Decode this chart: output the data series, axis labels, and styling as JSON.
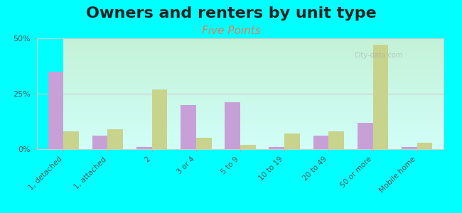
{
  "title": "Owners and renters by unit type",
  "subtitle": "Five Points",
  "categories": [
    "1, detached",
    "1, attached",
    "2",
    "3 or 4",
    "5 to 9",
    "10 to 19",
    "20 to 49",
    "50 or more",
    "Mobile home"
  ],
  "owner_values": [
    35,
    6,
    1,
    20,
    21,
    1,
    6,
    12,
    1
  ],
  "renter_values": [
    8,
    9,
    27,
    5,
    2,
    7,
    8,
    47,
    3
  ],
  "owner_color": "#c8a0d8",
  "renter_color": "#c8d48c",
  "background_color": "#00ffff",
  "plot_bg_top": "#e8f0d0",
  "plot_bg_bottom": "#f8fff8",
  "ylim": [
    0,
    50
  ],
  "yticks": [
    0,
    25,
    50
  ],
  "ytick_labels": [
    "0%",
    "25%",
    "50%"
  ],
  "title_fontsize": 16,
  "subtitle_fontsize": 11,
  "bar_width": 0.35
}
